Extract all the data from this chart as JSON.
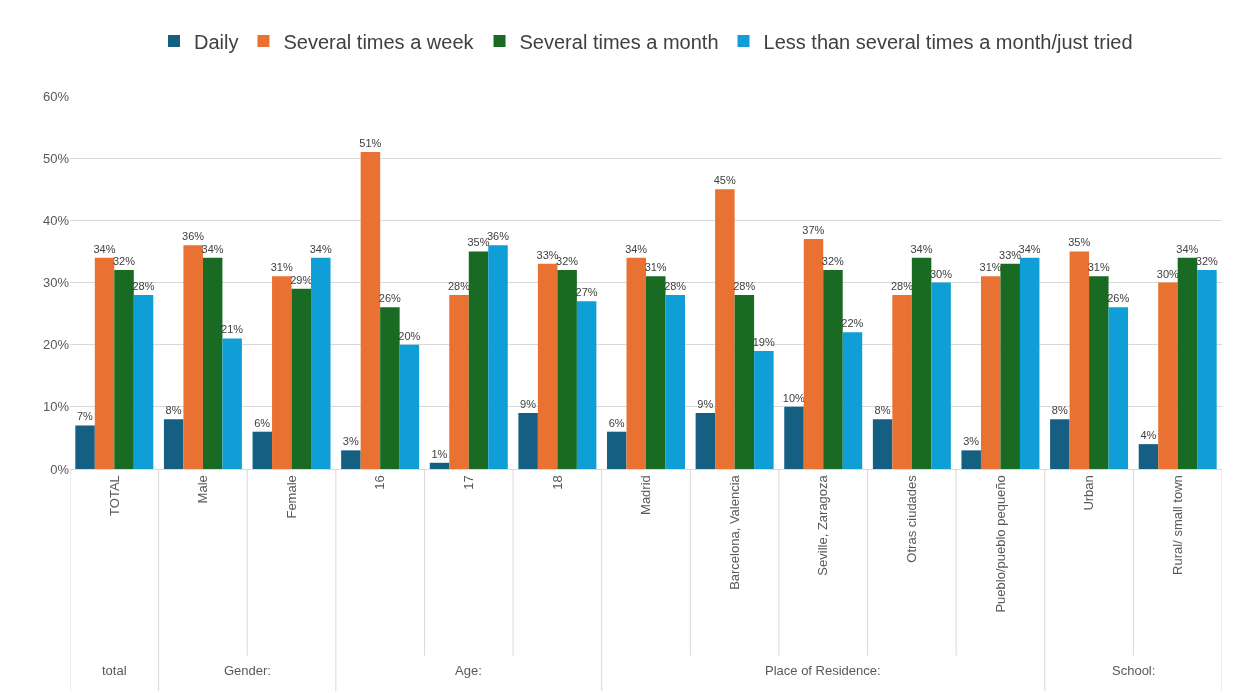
{
  "chart_data": {
    "type": "bar",
    "categories": [
      "TOTAL",
      "Male",
      "Female",
      "16",
      "17",
      "18",
      "Madrid",
      "Barcelona, Valencia",
      "Seville, Zaragoza",
      "Otras ciudades",
      "Pueblo/pueblo pequeño",
      "Urban",
      "Rural/ small town"
    ],
    "series": [
      {
        "name": "Daily",
        "color": "#156082",
        "values": [
          7,
          8,
          6,
          3,
          1,
          9,
          6,
          9,
          10,
          8,
          3,
          8,
          4
        ],
        "value_labels": [
          "7%",
          "8%",
          "6%",
          "3%",
          "1%",
          "9%",
          "6%",
          "9%",
          "10%",
          "8%",
          "3%",
          "8%",
          "4%"
        ]
      },
      {
        "name": "Several times a week",
        "color": "#e97132",
        "values": [
          34,
          36,
          31,
          51,
          28,
          33,
          34,
          45,
          37,
          28,
          31,
          35,
          30
        ],
        "value_labels": [
          "34%",
          "36%",
          "31%",
          "51%",
          "28%",
          "33%",
          "34%",
          "45%",
          "37%",
          "28%",
          "31%",
          "35%",
          "30%"
        ]
      },
      {
        "name": "Several times a month",
        "color": "#196b24",
        "values": [
          32,
          34,
          29,
          26,
          35,
          32,
          31,
          28,
          32,
          34,
          33,
          31,
          34
        ],
        "value_labels": [
          "32%",
          "34%",
          "29%",
          "26%",
          "35%",
          "32%",
          "31%",
          "28%",
          "32%",
          "34%",
          "33%",
          "31%",
          "34%"
        ]
      },
      {
        "name": "Less than several times a month/just tried",
        "color": "#0f9ed5",
        "values": [
          28,
          21,
          34,
          20,
          36,
          27,
          28,
          19,
          22,
          30,
          34,
          26,
          32
        ],
        "value_labels": [
          "28%",
          "21%",
          "34%",
          "20%",
          "36%",
          "27%",
          "28%",
          "19%",
          "22%",
          "30%",
          "34%",
          "26%",
          "32%"
        ]
      }
    ],
    "ylim": [
      0,
      60
    ],
    "yticks": [
      {
        "value": 0,
        "label": "0%"
      },
      {
        "value": 10,
        "label": "10%"
      },
      {
        "value": 20,
        "label": "20%"
      },
      {
        "value": 30,
        "label": "30%"
      },
      {
        "value": 40,
        "label": "40%"
      },
      {
        "value": 50,
        "label": "50%"
      },
      {
        "value": 60,
        "label": "60%"
      }
    ],
    "grid": "y",
    "legend": "top",
    "annotations": [
      "total",
      "Gender:",
      "Age:",
      "Place of Residence:",
      "School:"
    ]
  }
}
